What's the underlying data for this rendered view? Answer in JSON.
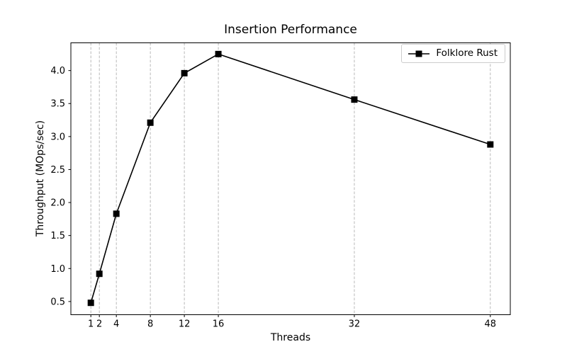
{
  "figure": {
    "background": "#ffffff",
    "text_color": "#000000"
  },
  "chart_data": {
    "type": "line",
    "title": "Insertion Performance",
    "xlabel": "Threads",
    "ylabel": "Throughput (MOps/sec)",
    "x": [
      1,
      2,
      4,
      8,
      12,
      16,
      32,
      48
    ],
    "series": [
      {
        "name": "Folklore Rust",
        "values": [
          0.48,
          0.92,
          1.83,
          3.21,
          3.96,
          4.25,
          3.56,
          2.88
        ],
        "color": "#000000",
        "marker": "square",
        "line_width": 1.6,
        "marker_size": 9
      }
    ],
    "x_scale": "linear",
    "x_ticks": [
      1,
      2,
      4,
      8,
      12,
      16,
      32,
      48
    ],
    "y_ticks": [
      0.5,
      1.0,
      1.5,
      2.0,
      2.5,
      3.0,
      3.5,
      4.0
    ],
    "y_tick_labels": [
      "0.5",
      "1.0",
      "1.5",
      "2.0",
      "2.5",
      "3.0",
      "3.5",
      "4.0"
    ],
    "xlim": [
      -1.35,
      50.35
    ],
    "ylim": [
      0.3,
      4.42
    ],
    "grid": {
      "axis": "x",
      "style": "dashed",
      "color": "#b0b0b0",
      "dash": "3.8 2.2",
      "width": 0.9
    },
    "spine_color": "#000000",
    "legend": {
      "position": "upper right",
      "entries": [
        "Folklore Rust"
      ]
    }
  }
}
